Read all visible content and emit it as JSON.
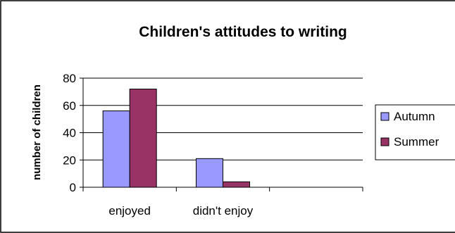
{
  "chart_data": {
    "type": "bar",
    "title": "Children's attitudes to writing",
    "xlabel": "",
    "ylabel": "number of children",
    "categories": [
      "enjoyed",
      "didn't enjoy",
      ""
    ],
    "series": [
      {
        "name": "Autumn",
        "values": [
          56,
          21,
          null
        ],
        "color": "#9999ff"
      },
      {
        "name": "Summer",
        "values": [
          72,
          4,
          null
        ],
        "color": "#993366"
      }
    ],
    "ylim": [
      0,
      80
    ],
    "yticks": [
      0,
      20,
      40,
      60,
      80
    ],
    "grid": true,
    "legend": "right"
  }
}
